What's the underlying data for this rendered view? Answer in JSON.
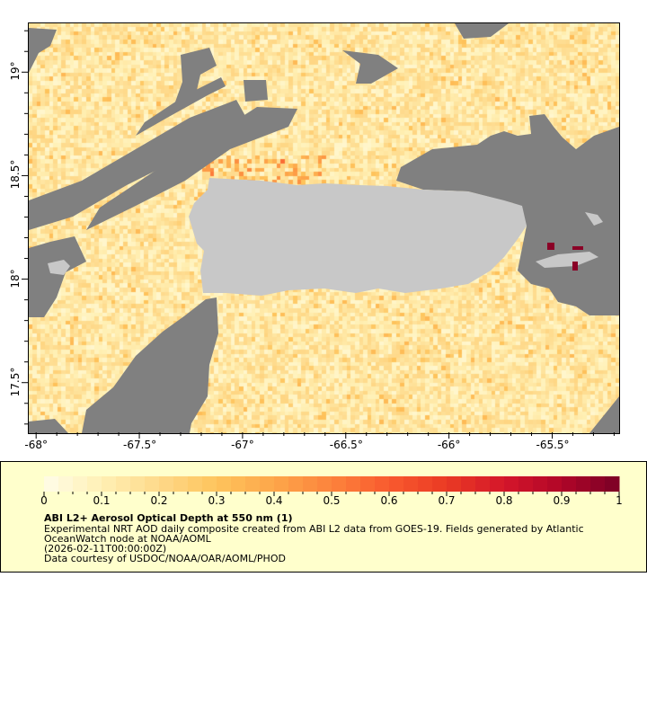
{
  "chart_data": {
    "type": "heatmap",
    "title": "ABI L2+ Aerosol Optical Depth at 550 nm (1)",
    "description_lines": [
      "Experimental NRT AOD daily composite created from ABI L2 data from GOES-19. Fields generated by Atlantic",
      "OceanWatch node at NOAA/AOML",
      "(2026-02-11T00:00:00Z)",
      "Data courtesy of USDOC/NOAA/OAR/AOML/PHOD"
    ],
    "x_ticks": [
      "-68°",
      "-67.5°",
      "-67°",
      "-66.5°",
      "-66°",
      "-65.5°"
    ],
    "x_tick_values": [
      -68,
      -67.5,
      -67,
      -66.5,
      -66,
      -65.5
    ],
    "y_ticks": [
      "19°",
      "18.5°",
      "18°",
      "17.5°"
    ],
    "y_tick_values": [
      19,
      18.5,
      18,
      17.5
    ],
    "xlim": [
      -68.04,
      -65.18
    ],
    "ylim": [
      17.26,
      19.24
    ],
    "colorbar": {
      "range": [
        0,
        1
      ],
      "ticks": [
        "0",
        "0.1",
        "0.2",
        "0.3",
        "0.4",
        "0.5",
        "0.6",
        "0.7",
        "0.8",
        "0.9",
        "1"
      ],
      "tick_values": [
        0,
        0.1,
        0.2,
        0.3,
        0.4,
        0.5,
        0.6,
        0.7,
        0.8,
        0.9,
        1
      ],
      "bins": 40,
      "colors": [
        "#fffde8",
        "#fff0b4",
        "#fed98a",
        "#fec45c",
        "#fda64a",
        "#fc833c",
        "#f95a2e",
        "#ea3a24",
        "#d4162a",
        "#b00628",
        "#7a0026"
      ]
    },
    "no_data_color": "#808080",
    "land_color": "#c8c8c8",
    "typical_value_range": [
      0.05,
      0.35
    ]
  }
}
